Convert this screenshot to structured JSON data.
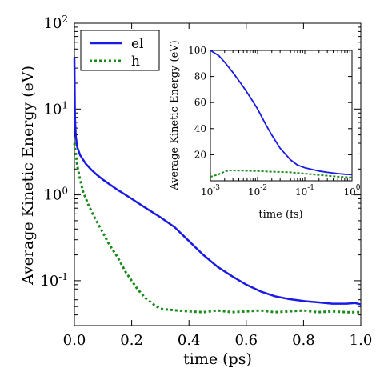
{
  "chart_data": [
    {
      "type": "line",
      "xlabel": "time (ps)",
      "ylabel": "Average Kinetic Energy (eV)",
      "xlim": [
        0,
        1
      ],
      "ylim": [
        0.03,
        100
      ],
      "yscale": "log",
      "x_tick_labels": [
        "0.0",
        "0.2",
        "0.4",
        "0.6",
        "0.8",
        "1.0"
      ],
      "y_tick_labels": [
        {
          "base": "10",
          "exp": "-1"
        },
        {
          "base": "10",
          "exp": "0"
        },
        {
          "base": "10",
          "exp": "1"
        },
        {
          "base": "10",
          "exp": "2"
        }
      ],
      "legend": {
        "position": "top-left"
      },
      "series": [
        {
          "name": "el",
          "color": "#1a1ae6",
          "style": "solid",
          "x": [
            0.0,
            0.002,
            0.005,
            0.01,
            0.02,
            0.04,
            0.06,
            0.08,
            0.1,
            0.15,
            0.2,
            0.25,
            0.3,
            0.35,
            0.4,
            0.45,
            0.5,
            0.55,
            0.6,
            0.65,
            0.7,
            0.75,
            0.8,
            0.85,
            0.9,
            0.95,
            0.98,
            1.0
          ],
          "y": [
            40,
            8,
            4.8,
            3.6,
            2.9,
            2.3,
            1.95,
            1.7,
            1.5,
            1.15,
            0.9,
            0.7,
            0.55,
            0.42,
            0.29,
            0.2,
            0.145,
            0.113,
            0.09,
            0.075,
            0.066,
            0.061,
            0.058,
            0.056,
            0.054,
            0.054,
            0.055,
            0.053
          ]
        },
        {
          "name": "h",
          "color": "#1a8a1a",
          "style": "dotted",
          "x": [
            0.0,
            0.005,
            0.01,
            0.02,
            0.03,
            0.05,
            0.07,
            0.1,
            0.12,
            0.15,
            0.18,
            0.2,
            0.22,
            0.25,
            0.28,
            0.3,
            0.33,
            0.36,
            0.4,
            0.45,
            0.5,
            0.55,
            0.6,
            0.65,
            0.7,
            0.75,
            0.8,
            0.85,
            0.9,
            0.95,
            1.0
          ],
          "y": [
            4.0,
            3.0,
            2.2,
            1.5,
            1.1,
            0.75,
            0.55,
            0.36,
            0.27,
            0.19,
            0.125,
            0.1,
            0.08,
            0.062,
            0.052,
            0.047,
            0.046,
            0.045,
            0.044,
            0.043,
            0.045,
            0.043,
            0.044,
            0.045,
            0.043,
            0.044,
            0.045,
            0.043,
            0.044,
            0.043,
            0.043
          ]
        }
      ]
    },
    {
      "type": "line",
      "inset": true,
      "xlabel": "time (fs)",
      "ylabel": "Average Kinetic Energy (eV)",
      "xscale": "log",
      "xlim": [
        0.001,
        1
      ],
      "ylim": [
        0,
        100
      ],
      "x_tick_labels": [
        {
          "base": "10",
          "exp": "-3"
        },
        {
          "base": "10",
          "exp": "-2"
        },
        {
          "base": "10",
          "exp": "-1"
        },
        {
          "base": "10",
          "exp": "0"
        }
      ],
      "y_tick_labels": [
        "20",
        "40",
        "60",
        "80",
        "100"
      ],
      "y_ticks": [
        20,
        40,
        60,
        80,
        100
      ],
      "series": [
        {
          "name": "el",
          "color": "#1a1ae6",
          "style": "solid",
          "x": [
            0.001,
            0.0015,
            0.002,
            0.003,
            0.005,
            0.007,
            0.01,
            0.015,
            0.02,
            0.03,
            0.05,
            0.07,
            0.1,
            0.15,
            0.2,
            0.3,
            0.5,
            0.7,
            1.0
          ],
          "y": [
            100,
            96,
            91,
            83,
            72,
            64,
            55,
            43,
            35,
            25,
            16,
            12,
            10,
            8.5,
            7.5,
            6.5,
            5.5,
            5.0,
            4.8
          ]
        },
        {
          "name": "h",
          "color": "#1a8a1a",
          "style": "dotted",
          "x": [
            0.001,
            0.0015,
            0.002,
            0.0025,
            0.003,
            0.005,
            0.01,
            0.02,
            0.05,
            0.1,
            0.2,
            0.5,
            1.0
          ],
          "y": [
            3,
            5,
            7,
            8,
            8,
            7.8,
            7.5,
            7,
            6.5,
            5.5,
            4.5,
            3.2,
            2.5
          ]
        }
      ]
    }
  ]
}
